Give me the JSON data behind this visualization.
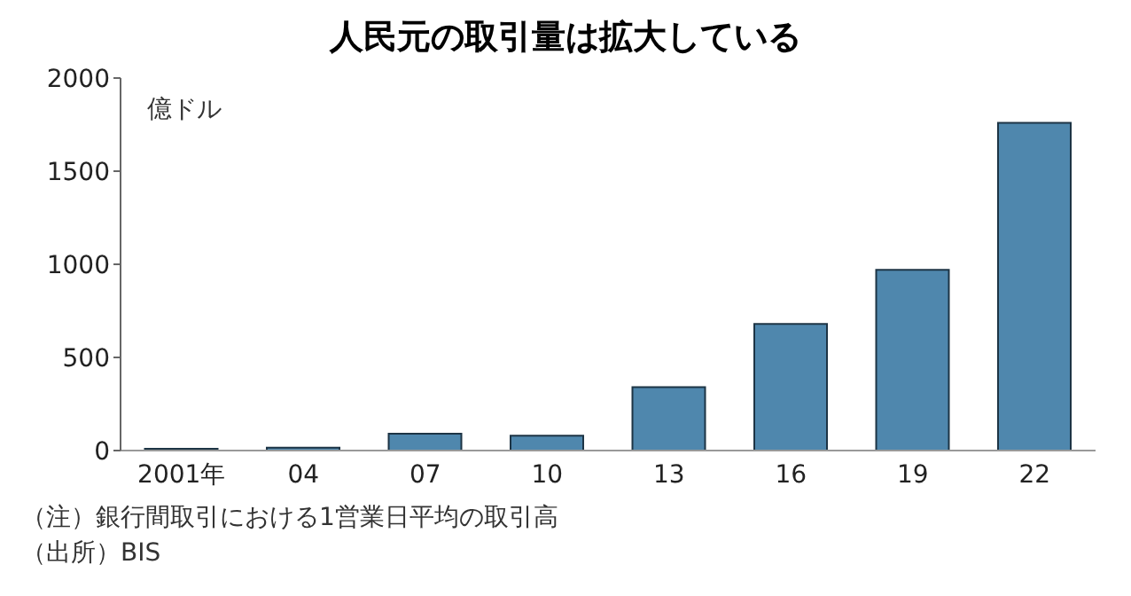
{
  "chart_data": {
    "type": "bar",
    "title": "人民元の取引量は拡大している",
    "ylabel": "億ドル",
    "categories": [
      "2001年",
      "04",
      "07",
      "10",
      "13",
      "16",
      "19",
      "22"
    ],
    "values": [
      10,
      15,
      90,
      80,
      340,
      680,
      970,
      1760
    ],
    "color": "#4f87ad",
    "ylim": [
      0,
      2000
    ],
    "yticks": [
      0,
      500,
      1000,
      1500,
      2000
    ],
    "grid": false,
    "annotations": [
      "（注）銀行間取引における1営業日平均の取引高",
      "（出所）BIS"
    ]
  }
}
